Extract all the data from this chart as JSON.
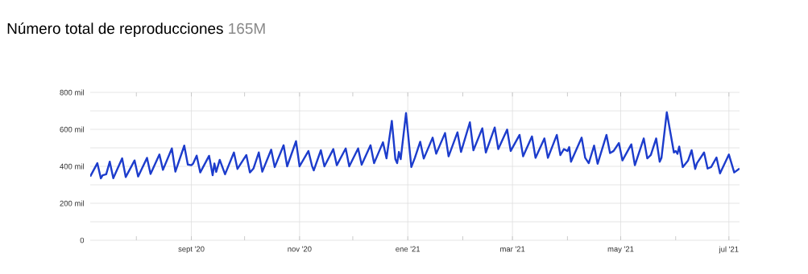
{
  "chart_data": {
    "type": "line",
    "title": "Número total de reproducciones",
    "subtitle": "165M",
    "color": "#1c3ccc",
    "grid": true,
    "xlim": [
      "2020-07-06",
      "2021-07-07"
    ],
    "ylim": [
      0,
      800
    ],
    "xticks": [
      {
        "value": "2020-08-01",
        "label": null
      },
      {
        "value": "2020-09-01",
        "label": "sept '20"
      },
      {
        "value": "2020-10-01",
        "label": null
      },
      {
        "value": "2020-11-01",
        "label": "nov '20"
      },
      {
        "value": "2020-12-01",
        "label": null
      },
      {
        "value": "2021-01-01",
        "label": "ene '21"
      },
      {
        "value": "2021-02-01",
        "label": null
      },
      {
        "value": "2021-03-01",
        "label": "mar '21"
      },
      {
        "value": "2021-04-01",
        "label": null
      },
      {
        "value": "2021-05-01",
        "label": "may '21"
      },
      {
        "value": "2021-06-01",
        "label": null
      },
      {
        "value": "2021-07-01",
        "label": "jul '21"
      }
    ],
    "yticks": [
      0,
      {
        "value": 100,
        "label": null
      },
      {
        "value": 200,
        "label": "200 mil"
      },
      {
        "value": 300,
        "label": null
      },
      {
        "value": 400,
        "label": "400 mil"
      },
      {
        "value": 500,
        "label": null
      },
      {
        "value": 600,
        "label": "600 mil"
      },
      {
        "value": 700,
        "label": null
      },
      {
        "value": 800,
        "label": "800 mil"
      }
    ],
    "x": [
      "2020-07-06",
      "2020-07-10",
      "2020-07-12",
      "2020-07-13",
      "2020-07-15",
      "2020-07-17",
      "2020-07-19",
      "2020-07-24",
      "2020-07-26",
      "2020-07-31",
      "2020-08-02",
      "2020-08-07",
      "2020-08-09",
      "2020-08-14",
      "2020-08-16",
      "2020-08-21",
      "2020-08-23",
      "2020-08-28",
      "2020-08-30",
      "2020-09-01",
      "2020-09-02",
      "2020-09-04",
      "2020-09-06",
      "2020-09-11",
      "2020-09-13",
      "2020-09-14",
      "2020-09-15",
      "2020-09-17",
      "2020-09-20",
      "2020-09-25",
      "2020-09-27",
      "2020-10-02",
      "2020-10-04",
      "2020-10-06",
      "2020-10-09",
      "2020-10-11",
      "2020-10-16",
      "2020-10-18",
      "2020-10-23",
      "2020-10-25",
      "2020-10-30",
      "2020-11-01",
      "2020-11-06",
      "2020-11-08",
      "2020-11-09",
      "2020-11-13",
      "2020-11-15",
      "2020-11-20",
      "2020-11-22",
      "2020-11-27",
      "2020-11-29",
      "2020-12-04",
      "2020-12-06",
      "2020-12-11",
      "2020-12-13",
      "2020-12-18",
      "2020-12-20",
      "2020-12-23",
      "2020-12-25",
      "2020-12-26",
      "2020-12-27",
      "2020-12-28",
      "2020-12-31",
      "2021-01-03",
      "2021-01-05",
      "2021-01-08",
      "2021-01-10",
      "2021-01-15",
      "2021-01-17",
      "2021-01-22",
      "2021-01-24",
      "2021-01-29",
      "2021-01-31",
      "2021-02-05",
      "2021-02-07",
      "2021-02-12",
      "2021-02-14",
      "2021-02-19",
      "2021-02-21",
      "2021-02-26",
      "2021-02-28",
      "2021-03-05",
      "2021-03-07",
      "2021-03-12",
      "2021-03-14",
      "2021-03-19",
      "2021-03-21",
      "2021-03-26",
      "2021-03-28",
      "2021-03-30",
      "2021-04-01",
      "2021-04-02",
      "2021-04-03",
      "2021-04-09",
      "2021-04-11",
      "2021-04-13",
      "2021-04-16",
      "2021-04-18",
      "2021-04-23",
      "2021-04-25",
      "2021-04-27",
      "2021-04-30",
      "2021-05-02",
      "2021-05-07",
      "2021-05-09",
      "2021-05-14",
      "2021-05-16",
      "2021-05-18",
      "2021-05-21",
      "2021-05-23",
      "2021-05-24",
      "2021-05-27",
      "2021-05-29",
      "2021-05-31",
      "2021-06-01",
      "2021-06-02",
      "2021-06-03",
      "2021-06-05",
      "2021-06-08",
      "2021-06-10",
      "2021-06-12",
      "2021-06-13",
      "2021-06-17",
      "2021-06-19",
      "2021-06-21",
      "2021-06-24",
      "2021-06-26",
      "2021-07-01",
      "2021-07-04",
      "2021-07-07"
    ],
    "values": [
      345,
      417,
      335,
      352,
      357,
      425,
      336,
      443,
      342,
      432,
      345,
      446,
      359,
      464,
      381,
      497,
      371,
      512,
      410,
      406,
      415,
      458,
      367,
      457,
      352,
      415,
      370,
      435,
      357,
      475,
      386,
      461,
      367,
      388,
      475,
      371,
      490,
      396,
      514,
      400,
      536,
      400,
      483,
      403,
      378,
      487,
      400,
      493,
      406,
      497,
      400,
      497,
      409,
      514,
      417,
      530,
      443,
      646,
      439,
      417,
      478,
      439,
      688,
      396,
      446,
      533,
      442,
      555,
      468,
      580,
      454,
      584,
      478,
      638,
      487,
      606,
      475,
      610,
      493,
      599,
      483,
      570,
      454,
      562,
      446,
      551,
      446,
      570,
      461,
      493,
      483,
      504,
      425,
      555,
      446,
      417,
      512,
      414,
      570,
      472,
      483,
      526,
      432,
      519,
      406,
      551,
      443,
      461,
      551,
      425,
      446,
      693,
      584,
      475,
      483,
      468,
      507,
      396,
      432,
      487,
      386,
      417,
      475,
      388,
      396,
      448,
      362,
      464,
      367,
      388
    ]
  }
}
